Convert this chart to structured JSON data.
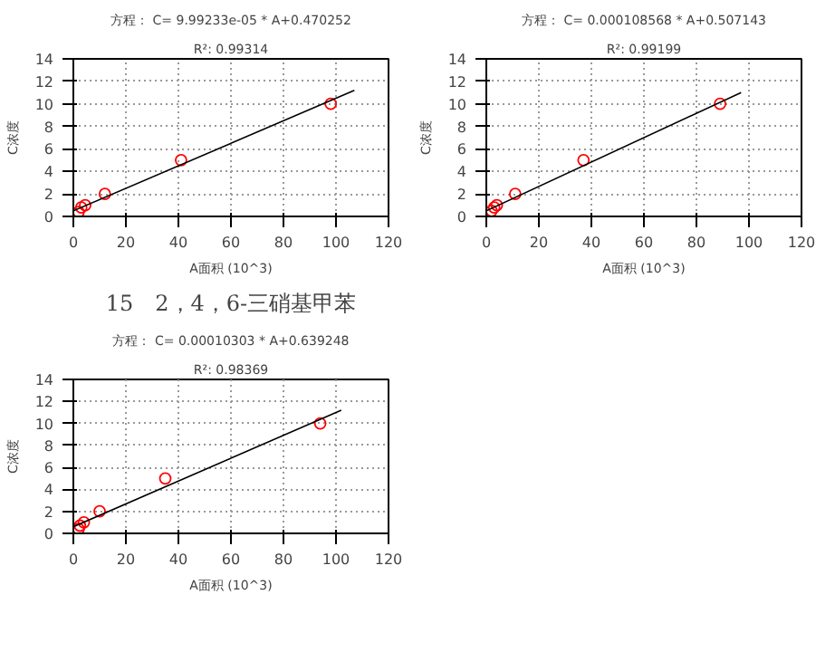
{
  "chart_data": [
    {
      "type": "scatter",
      "title": "方程： C= 9.99233e-05 * A+0.470252",
      "subtitle": "R²: 0.99314",
      "xlabel": "A面积 (10^3)",
      "ylabel": "C浓度",
      "xlim": [
        0,
        120
      ],
      "ylim": [
        0,
        14
      ],
      "xticks": [
        0,
        20,
        40,
        60,
        80,
        100,
        120
      ],
      "yticks": [
        0,
        2,
        4,
        6,
        8,
        10,
        12,
        14
      ],
      "grid": true,
      "series": [
        {
          "color": "#ff0000",
          "marker": "circle",
          "x": [
            2,
            3,
            4.5,
            12,
            41,
            98
          ],
          "values": [
            0.4,
            0.8,
            1,
            2,
            5,
            10
          ]
        },
        {
          "type": "line",
          "marker": "none",
          "color": "#000000",
          "x": [
            0,
            107
          ],
          "values": [
            0.5,
            11.2
          ]
        }
      ]
    },
    {
      "type": "scatter",
      "title": "方程： C= 0.000108568 * A+0.507143",
      "subtitle": "R²: 0.99199",
      "xlabel": "A面积 (10^3)",
      "ylabel": "C浓度",
      "xlim": [
        0,
        120
      ],
      "ylim": [
        0,
        14
      ],
      "xticks": [
        0,
        20,
        40,
        60,
        80,
        100,
        120
      ],
      "yticks": [
        0,
        2,
        4,
        6,
        8,
        10,
        12,
        14
      ],
      "grid": true,
      "series": [
        {
          "color": "#ff0000",
          "marker": "circle",
          "x": [
            2,
            3,
            4,
            11,
            37,
            89
          ],
          "values": [
            0.5,
            0.8,
            1,
            2,
            5,
            10
          ]
        },
        {
          "type": "line",
          "marker": "none",
          "color": "#000000",
          "x": [
            0,
            97
          ],
          "values": [
            0.5,
            11.0
          ]
        }
      ]
    },
    {
      "type": "scatter",
      "annotations": [
        "15　2，4，6-三硝基甲苯"
      ],
      "title": "方程： C= 0.00010303 * A+0.639248",
      "subtitle": "R²: 0.98369",
      "xlabel": "A面积 (10^3)",
      "ylabel": "C浓度",
      "xlim": [
        0,
        120
      ],
      "ylim": [
        0,
        14
      ],
      "xticks": [
        0,
        20,
        40,
        60,
        80,
        100,
        120
      ],
      "yticks": [
        0,
        2,
        4,
        6,
        8,
        10,
        12,
        14
      ],
      "grid": true,
      "series": [
        {
          "color": "#ff0000",
          "marker": "circle",
          "x": [
            2,
            2.5,
            4,
            10,
            35,
            94
          ],
          "values": [
            0.4,
            0.7,
            1,
            2,
            5,
            10
          ]
        },
        {
          "type": "line",
          "marker": "none",
          "color": "#000000",
          "x": [
            0,
            102
          ],
          "values": [
            0.6,
            11.2
          ]
        }
      ]
    }
  ]
}
